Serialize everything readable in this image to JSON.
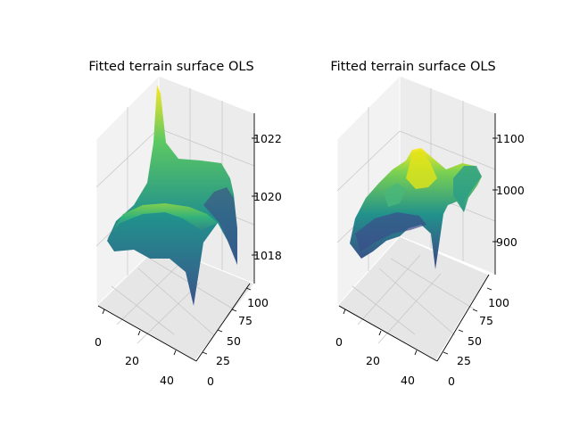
{
  "chart_data": [
    {
      "type": "surface3d",
      "title": "Fitted terrain surface OLS",
      "xlabel": "",
      "ylabel": "",
      "zlabel": "",
      "xlim": [
        0,
        50
      ],
      "ylim": [
        0,
        100
      ],
      "zlim": [
        1017.7,
        1022.8
      ],
      "xticks": [
        0,
        20,
        40
      ],
      "yticks": [
        0,
        25,
        50,
        75,
        100
      ],
      "zticks": [
        1018,
        1020,
        1022
      ],
      "colormap": "viridis",
      "grid": true,
      "surface_grid_x": [
        0,
        10,
        20,
        30,
        40,
        50
      ],
      "surface_grid_y": [
        0,
        20,
        40,
        60,
        80,
        100
      ],
      "surface_z": [
        [
          1018.5,
          1019.0,
          1019.3,
          1019.4,
          1019.0,
          1018.4
        ],
        [
          1019.0,
          1019.6,
          1019.8,
          1019.9,
          1019.6,
          1019.2
        ],
        [
          1019.3,
          1019.8,
          1020.1,
          1020.2,
          1020.0,
          1019.5
        ],
        [
          1019.0,
          1019.6,
          1020.0,
          1022.8,
          1019.8,
          1019.3
        ],
        [
          1017.7,
          1019.2,
          1019.6,
          1019.6,
          1019.3,
          1018.6
        ],
        [
          1018.2,
          1018.8,
          1019.2,
          1019.2,
          1018.9,
          1018.0
        ]
      ]
    },
    {
      "type": "surface3d",
      "title": "Fitted terrain surface OLS",
      "xlabel": "",
      "ylabel": "",
      "zlabel": "",
      "xlim": [
        0,
        50
      ],
      "ylim": [
        0,
        100
      ],
      "zlim": [
        840,
        1140
      ],
      "xticks": [
        0,
        20,
        40
      ],
      "yticks": [
        0,
        25,
        50,
        75,
        100
      ],
      "zticks": [
        900,
        1000,
        1100
      ],
      "colormap": "viridis",
      "grid": true,
      "surface_grid_x": [
        0,
        10,
        20,
        30,
        40,
        50
      ],
      "surface_grid_y": [
        0,
        20,
        40,
        60,
        80,
        100
      ],
      "surface_z": [
        [
          930,
          960,
          990,
          1000,
          980,
          950
        ],
        [
          950,
          1000,
          1040,
          1050,
          1020,
          980
        ],
        [
          960,
          1020,
          1080,
          1070,
          1030,
          990
        ],
        [
          940,
          990,
          1040,
          1020,
          1000,
          970
        ],
        [
          910,
          950,
          980,
          860,
          960,
          940
        ],
        [
          900,
          930,
          950,
          960,
          950,
          920
        ]
      ]
    }
  ]
}
